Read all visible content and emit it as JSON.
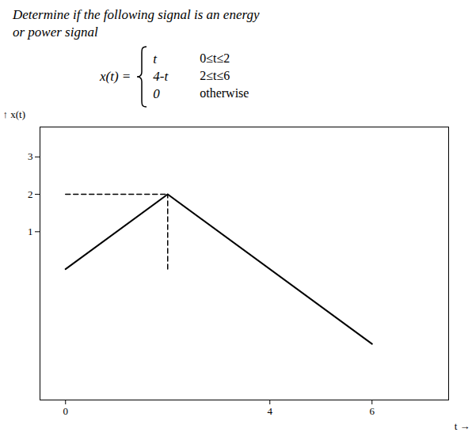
{
  "chart_data": {
    "type": "line",
    "title": "Determine if the following signal is an energy",
    "subtitle": "or power signal",
    "annotations": [
      "x(t) =",
      "t",
      "4-t",
      "0",
      "0≤t≤2",
      "2≤t≤6",
      "otherwise"
    ],
    "x": [
      0,
      2,
      6
    ],
    "values": [
      0,
      2,
      -2
    ],
    "dashed_lines": [
      {
        "x": [
          0,
          2
        ],
        "y": [
          2,
          2
        ]
      },
      {
        "x": [
          2,
          2
        ],
        "y": [
          0,
          2
        ]
      }
    ],
    "xlabel": "t",
    "ylabel": "x(t)",
    "xlim": [
      -0.5,
      7.5
    ],
    "ylim": [
      -3.5,
      3.8
    ],
    "xticks": [
      0,
      4,
      6
    ],
    "yticks": [
      1,
      2,
      3
    ],
    "grid": false
  }
}
